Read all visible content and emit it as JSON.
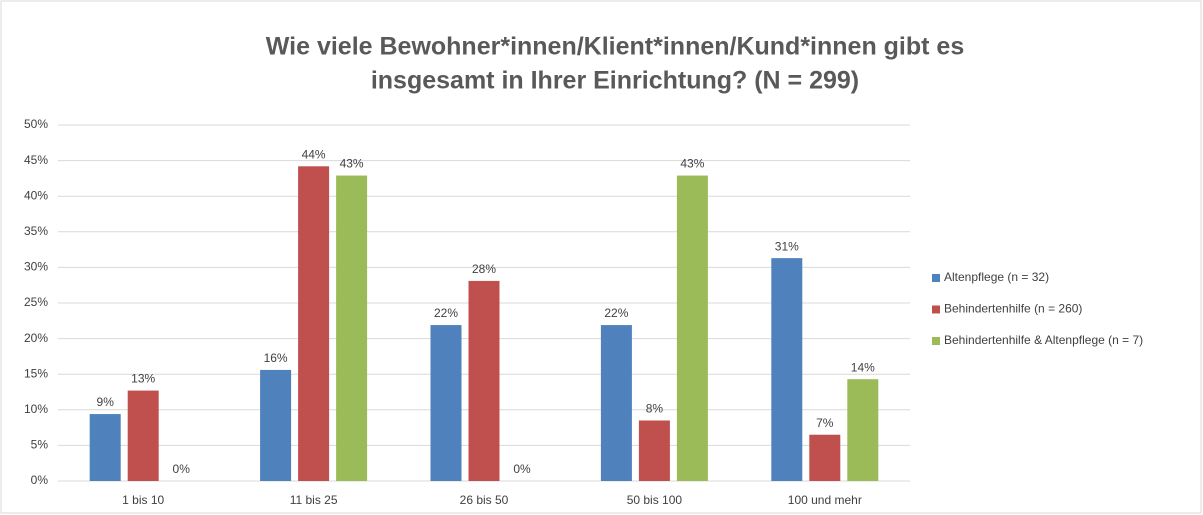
{
  "chart_data": {
    "type": "bar",
    "title": [
      "Wie viele Bewohner*innen/Klient*innen/Kund*innen gibt es",
      "insgesamt in Ihrer Einrichtung? (N = 299)"
    ],
    "categories": [
      "1 bis 10",
      "11 bis 25",
      "26 bis 50",
      "50 bis 100",
      "100 und mehr"
    ],
    "series": [
      {
        "name": "Altenpflege (n = 32)",
        "color": "#4f81bd",
        "values": [
          9.4,
          15.6,
          21.9,
          21.9,
          31.3
        ],
        "value_labels": [
          "9%",
          "16%",
          "22%",
          "22%",
          "31%"
        ]
      },
      {
        "name": "Behindertenhilfe (n = 260)",
        "color": "#c0504d",
        "values": [
          12.7,
          44.2,
          28.1,
          8.5,
          6.5
        ],
        "value_labels": [
          "13%",
          "44%",
          "28%",
          "8%",
          "7%"
        ]
      },
      {
        "name": "Behindertenhilfe & Altenpflege (n = 7)",
        "color": "#9bbb59",
        "values": [
          0,
          42.9,
          0,
          42.9,
          14.3
        ],
        "value_labels": [
          "0%",
          "43%",
          "0%",
          "43%",
          "14%"
        ]
      }
    ],
    "ylim": [
      0,
      50
    ],
    "yticks": [
      {
        "value": 0,
        "label": "0%"
      },
      {
        "value": 5,
        "label": "5%"
      },
      {
        "value": 10,
        "label": "10%"
      },
      {
        "value": 15,
        "label": "15%"
      },
      {
        "value": 20,
        "label": "20%"
      },
      {
        "value": 25,
        "label": "25%"
      },
      {
        "value": 30,
        "label": "30%"
      },
      {
        "value": 35,
        "label": "35%"
      },
      {
        "value": 40,
        "label": "40%"
      },
      {
        "value": 45,
        "label": "45%"
      },
      {
        "value": 50,
        "label": "50%"
      }
    ],
    "grid": true,
    "legend": "right"
  }
}
